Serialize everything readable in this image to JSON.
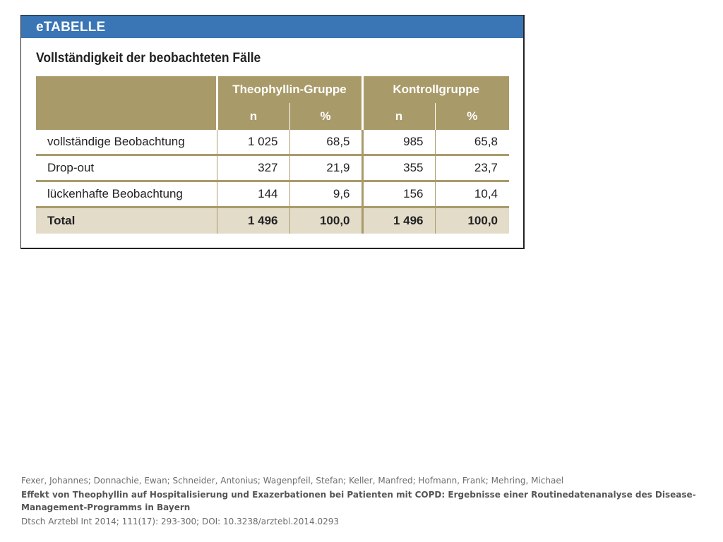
{
  "etable": {
    "header_label": "eTABELLE",
    "title": "Vollständigkeit der beobachteten Fälle",
    "colors": {
      "header_blue": "#3a75b5",
      "head_gold": "#a99a69",
      "total_bg": "#e3dcc9"
    },
    "groups": [
      "Theophyllin-Gruppe",
      "Kontrollgruppe"
    ],
    "subheaders": [
      "n",
      "%",
      "n",
      "%"
    ],
    "rows": [
      {
        "label": "vollständige Beobachtung",
        "cells": [
          "1 025",
          "68,5",
          "985",
          "65,8"
        ]
      },
      {
        "label": "Drop-out",
        "cells": [
          "327",
          "21,9",
          "355",
          "23,7"
        ]
      },
      {
        "label": "lückenhafte Beobachtung",
        "cells": [
          "144",
          "9,6",
          "156",
          "10,4"
        ]
      }
    ],
    "total": {
      "label": "Total",
      "cells": [
        "1 496",
        "100,0",
        "1 496",
        "100,0"
      ]
    }
  },
  "citation": {
    "authors": "Fexer, Johannes; Donnachie, Ewan; Schneider, Antonius; Wagenpfeil, Stefan; Keller, Manfred; Hofmann, Frank; Mehring, Michael",
    "title": "Effekt von Theophyllin auf Hospitalisierung und Exazerbationen bei Patienten mit COPD: Ergebnisse einer Routinedatenanalyse des Disease-Management-Programms in Bayern",
    "source": "Dtsch Arztebl Int 2014; 111(17): 293-300; DOI: 10.3238/arztebl.2014.0293"
  }
}
